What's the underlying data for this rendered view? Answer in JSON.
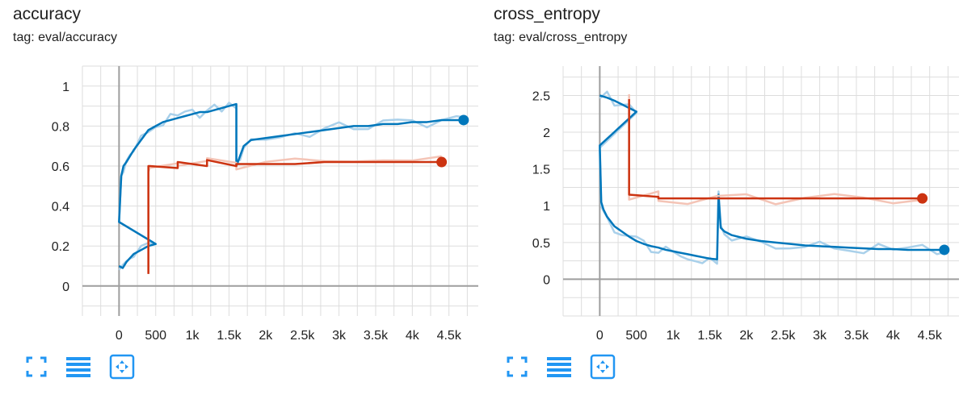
{
  "colors": {
    "blue": "#0077bb",
    "blue_light": "#a9d0ea",
    "red": "#cc3311",
    "red_light": "#f4c4b6",
    "grid": "#dddddd",
    "axis": "#9e9e9e",
    "toolbar": "#2196f3"
  },
  "toolbar_icons": [
    "fullscreen-icon",
    "data-table-icon",
    "fit-domain-icon"
  ],
  "charts": [
    {
      "title": "accuracy",
      "tag": "tag: eval/accuracy"
    },
    {
      "title": "cross_entropy",
      "tag": "tag: eval/cross_entropy"
    }
  ],
  "chart_data": [
    {
      "type": "line",
      "title": "accuracy",
      "subtitle": "tag: eval/accuracy",
      "xlim": [
        -500,
        4900
      ],
      "ylim": [
        -0.15,
        1.1
      ],
      "x_ticks": [
        0,
        500,
        1000,
        1500,
        2000,
        2500,
        3000,
        3500,
        4000,
        4500
      ],
      "x_tick_labels": [
        "0",
        "500",
        "1k",
        "1.5k",
        "2k",
        "2.5k",
        "3k",
        "3.5k",
        "4k",
        "4.5k"
      ],
      "y_ticks": [
        0,
        0.2,
        0.4,
        0.6,
        0.8,
        1
      ],
      "y_tick_labels": [
        "0",
        "0.2",
        "0.4",
        "0.6",
        "0.8",
        "1"
      ],
      "grid": true,
      "series": [
        {
          "color": "#0077bb",
          "x": [
            0,
            50,
            100,
            150,
            200,
            300,
            400,
            500,
            0,
            30,
            60,
            100,
            150,
            200,
            300,
            400,
            500,
            600,
            700,
            800,
            900,
            1000,
            1100,
            1200,
            1300,
            1400,
            1500,
            1600,
            1600,
            1650,
            1700,
            1800,
            2000,
            2200,
            2400,
            2600,
            2800,
            3000,
            3200,
            3400,
            3600,
            3800,
            4000,
            4200,
            4400,
            4600,
            4700
          ],
          "y": [
            0.1,
            0.09,
            0.12,
            0.14,
            0.16,
            0.18,
            0.2,
            0.21,
            0.32,
            0.55,
            0.6,
            0.62,
            0.65,
            0.68,
            0.73,
            0.78,
            0.8,
            0.82,
            0.83,
            0.84,
            0.85,
            0.86,
            0.87,
            0.87,
            0.88,
            0.89,
            0.9,
            0.91,
            0.6,
            0.65,
            0.7,
            0.73,
            0.74,
            0.75,
            0.76,
            0.77,
            0.78,
            0.79,
            0.8,
            0.8,
            0.81,
            0.81,
            0.82,
            0.82,
            0.83,
            0.83,
            0.83
          ]
        },
        {
          "color": "#cc3311",
          "x": [
            400,
            400,
            420,
            800,
            800,
            1200,
            1200,
            1600,
            1600,
            2000,
            2400,
            2800,
            3200,
            3600,
            4000,
            4400
          ],
          "y": [
            0.06,
            0.6,
            0.6,
            0.59,
            0.62,
            0.6,
            0.63,
            0.6,
            0.61,
            0.61,
            0.61,
            0.62,
            0.62,
            0.62,
            0.62,
            0.62
          ]
        }
      ]
    },
    {
      "type": "line",
      "title": "cross_entropy",
      "subtitle": "tag: eval/cross_entropy",
      "xlim": [
        -500,
        4900
      ],
      "ylim": [
        -0.5,
        2.9
      ],
      "x_ticks": [
        0,
        500,
        1000,
        1500,
        2000,
        2500,
        3000,
        3500,
        4000,
        4500
      ],
      "x_tick_labels": [
        "0",
        "500",
        "1k",
        "1.5k",
        "2k",
        "2.5k",
        "3k",
        "3.5k",
        "4k",
        "4.5k"
      ],
      "y_ticks": [
        0,
        0.5,
        1,
        1.5,
        2,
        2.5
      ],
      "y_tick_labels": [
        "0",
        "0.5",
        "1",
        "1.5",
        "2",
        "2.5"
      ],
      "grid": true,
      "series": [
        {
          "color": "#0077bb",
          "x": [
            0,
            100,
            200,
            300,
            400,
            500,
            0,
            20,
            50,
            100,
            200,
            300,
            400,
            500,
            600,
            700,
            800,
            900,
            1000,
            1100,
            1200,
            1300,
            1400,
            1500,
            1600,
            1620,
            1650,
            1700,
            1800,
            2000,
            2200,
            2400,
            2600,
            2800,
            3000,
            3200,
            3400,
            3600,
            3800,
            4000,
            4200,
            4400,
            4600,
            4700
          ],
          "y": [
            2.5,
            2.47,
            2.43,
            2.38,
            2.33,
            2.28,
            1.82,
            1.05,
            0.95,
            0.85,
            0.72,
            0.65,
            0.58,
            0.52,
            0.48,
            0.45,
            0.43,
            0.4,
            0.38,
            0.36,
            0.34,
            0.32,
            0.3,
            0.28,
            0.27,
            1.15,
            0.7,
            0.65,
            0.6,
            0.55,
            0.52,
            0.5,
            0.48,
            0.46,
            0.45,
            0.44,
            0.43,
            0.42,
            0.41,
            0.41,
            0.4,
            0.4,
            0.4,
            0.4
          ]
        },
        {
          "color": "#cc3311",
          "x": [
            400,
            400,
            800,
            800,
            1200,
            1600,
            2000,
            2400,
            2800,
            3200,
            3600,
            4000,
            4400
          ],
          "y": [
            2.45,
            1.15,
            1.12,
            1.1,
            1.1,
            1.1,
            1.1,
            1.1,
            1.1,
            1.1,
            1.1,
            1.1,
            1.1
          ]
        }
      ]
    }
  ]
}
